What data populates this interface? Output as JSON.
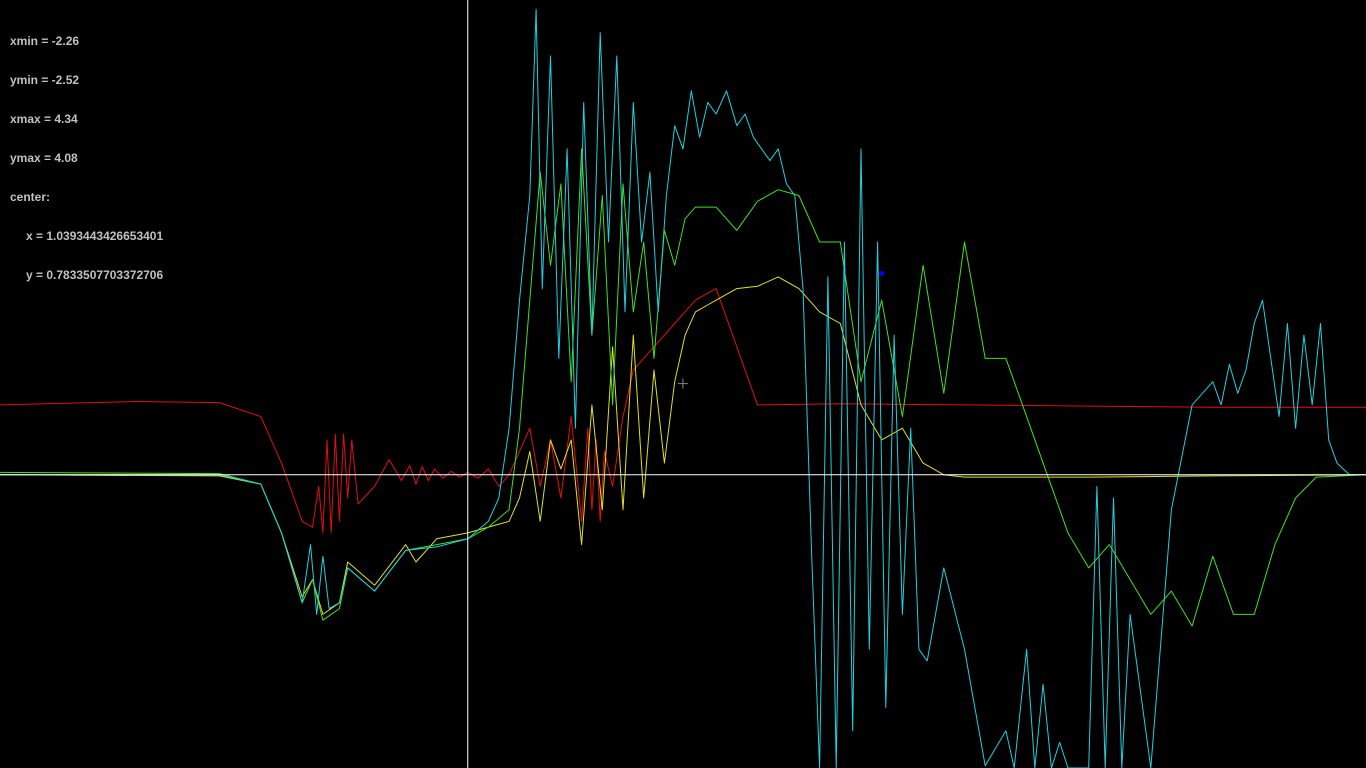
{
  "readout": {
    "xmin_line": "xmin = -2.26",
    "ymin_line": "ymin = -2.52",
    "xmax_line": "xmax = 4.34",
    "ymax_line": "ymax = 4.08",
    "center_line": "center:",
    "center_x_line": "x = 1.0393443426653401",
    "center_y_line": "y = 0.7833507703372706"
  },
  "chart_data": {
    "type": "line",
    "xlim": [
      -2.26,
      4.34
    ],
    "ylim": [
      -2.52,
      4.08
    ],
    "axes_color": "#ffffff",
    "background": "#000000",
    "center": [
      1.0393443426653401,
      0.7833507703372706
    ],
    "marker_point": {
      "x": 2.0,
      "y": 1.73,
      "color": "#0000ff"
    },
    "series": [
      {
        "color": "#e01010",
        "points": [
          [
            -2.26,
            0.6
          ],
          [
            -1.6,
            0.63
          ],
          [
            -1.2,
            0.62
          ],
          [
            -1.0,
            0.5
          ],
          [
            -0.9,
            0.1
          ],
          [
            -0.8,
            -0.4
          ],
          [
            -0.75,
            -0.45
          ],
          [
            -0.72,
            -0.1
          ],
          [
            -0.7,
            -0.5
          ],
          [
            -0.68,
            0.3
          ],
          [
            -0.66,
            -0.5
          ],
          [
            -0.64,
            0.35
          ],
          [
            -0.62,
            -0.4
          ],
          [
            -0.6,
            0.35
          ],
          [
            -0.58,
            -0.2
          ],
          [
            -0.56,
            0.3
          ],
          [
            -0.53,
            -0.25
          ],
          [
            -0.45,
            -0.1
          ],
          [
            -0.38,
            0.13
          ],
          [
            -0.32,
            -0.05
          ],
          [
            -0.28,
            0.08
          ],
          [
            -0.25,
            -0.08
          ],
          [
            -0.22,
            0.07
          ],
          [
            -0.19,
            -0.05
          ],
          [
            -0.16,
            0.05
          ],
          [
            -0.12,
            -0.03
          ],
          [
            -0.08,
            0.03
          ],
          [
            -0.04,
            -0.02
          ],
          [
            0.0,
            0.02
          ],
          [
            0.05,
            -0.03
          ],
          [
            0.1,
            0.05
          ],
          [
            0.15,
            -0.1
          ],
          [
            0.2,
            0.0
          ],
          [
            0.3,
            0.4
          ],
          [
            0.35,
            -0.1
          ],
          [
            0.4,
            0.3
          ],
          [
            0.45,
            -0.2
          ],
          [
            0.5,
            0.5
          ],
          [
            0.55,
            -0.4
          ],
          [
            0.58,
            0.4
          ],
          [
            0.6,
            -0.3
          ],
          [
            0.62,
            0.3
          ],
          [
            0.64,
            -0.4
          ],
          [
            0.66,
            0.2
          ],
          [
            0.7,
            -0.1
          ],
          [
            0.75,
            0.5
          ],
          [
            0.8,
            0.9
          ],
          [
            0.9,
            1.1
          ],
          [
            1.0,
            1.3
          ],
          [
            1.1,
            1.5
          ],
          [
            1.2,
            1.6
          ],
          [
            1.4,
            0.6
          ],
          [
            1.8,
            0.61
          ],
          [
            2.4,
            0.6
          ],
          [
            3.0,
            0.59
          ],
          [
            3.6,
            0.58
          ],
          [
            4.34,
            0.58
          ]
        ]
      },
      {
        "color": "#e0e020",
        "points": [
          [
            -2.26,
            0.0
          ],
          [
            -1.2,
            -0.01
          ],
          [
            -1.0,
            -0.08
          ],
          [
            -0.9,
            -0.5
          ],
          [
            -0.8,
            -1.05
          ],
          [
            -0.75,
            -0.9
          ],
          [
            -0.7,
            -1.2
          ],
          [
            -0.62,
            -1.1
          ],
          [
            -0.58,
            -0.75
          ],
          [
            -0.45,
            -0.95
          ],
          [
            -0.3,
            -0.6
          ],
          [
            -0.25,
            -0.75
          ],
          [
            -0.15,
            -0.55
          ],
          [
            0.0,
            -0.5
          ],
          [
            0.1,
            -0.45
          ],
          [
            0.2,
            -0.4
          ],
          [
            0.25,
            -0.2
          ],
          [
            0.3,
            0.2
          ],
          [
            0.35,
            -0.4
          ],
          [
            0.4,
            0.3
          ],
          [
            0.45,
            0.05
          ],
          [
            0.5,
            0.3
          ],
          [
            0.55,
            -0.6
          ],
          [
            0.6,
            0.6
          ],
          [
            0.65,
            -0.3
          ],
          [
            0.7,
            1.1
          ],
          [
            0.75,
            -0.3
          ],
          [
            0.8,
            1.2
          ],
          [
            0.85,
            -0.2
          ],
          [
            0.9,
            0.9
          ],
          [
            0.95,
            0.1
          ],
          [
            1.0,
            0.8
          ],
          [
            1.05,
            1.2
          ],
          [
            1.1,
            1.4
          ],
          [
            1.15,
            1.45
          ],
          [
            1.2,
            1.5
          ],
          [
            1.3,
            1.6
          ],
          [
            1.4,
            1.62
          ],
          [
            1.5,
            1.7
          ],
          [
            1.6,
            1.6
          ],
          [
            1.7,
            1.4
          ],
          [
            1.8,
            1.3
          ],
          [
            1.9,
            0.6
          ],
          [
            2.0,
            0.3
          ],
          [
            2.1,
            0.4
          ],
          [
            2.2,
            0.1
          ],
          [
            2.3,
            0.0
          ],
          [
            2.4,
            -0.02
          ],
          [
            3.0,
            -0.02
          ],
          [
            3.6,
            -0.01
          ],
          [
            4.34,
            0.0
          ]
        ]
      },
      {
        "color": "#40e020",
        "points": [
          [
            -2.26,
            0.02
          ],
          [
            -1.2,
            0.01
          ],
          [
            -1.0,
            -0.08
          ],
          [
            -0.9,
            -0.5
          ],
          [
            -0.8,
            -1.1
          ],
          [
            -0.75,
            -0.9
          ],
          [
            -0.7,
            -1.25
          ],
          [
            -0.62,
            -1.15
          ],
          [
            -0.58,
            -0.8
          ],
          [
            -0.45,
            -1.0
          ],
          [
            -0.3,
            -0.65
          ],
          [
            -0.15,
            -0.6
          ],
          [
            0.0,
            -0.55
          ],
          [
            0.1,
            -0.45
          ],
          [
            0.2,
            -0.3
          ],
          [
            0.25,
            0.4
          ],
          [
            0.3,
            1.5
          ],
          [
            0.35,
            2.6
          ],
          [
            0.4,
            1.8
          ],
          [
            0.45,
            2.5
          ],
          [
            0.5,
            0.8
          ],
          [
            0.55,
            2.8
          ],
          [
            0.6,
            1.2
          ],
          [
            0.65,
            2.4
          ],
          [
            0.7,
            0.6
          ],
          [
            0.75,
            2.5
          ],
          [
            0.8,
            1.4
          ],
          [
            0.85,
            2.0
          ],
          [
            0.9,
            1.0
          ],
          [
            0.95,
            2.1
          ],
          [
            1.0,
            1.8
          ],
          [
            1.05,
            2.2
          ],
          [
            1.1,
            2.3
          ],
          [
            1.2,
            2.3
          ],
          [
            1.3,
            2.1
          ],
          [
            1.4,
            2.35
          ],
          [
            1.5,
            2.45
          ],
          [
            1.6,
            2.4
          ],
          [
            1.7,
            2.0
          ],
          [
            1.8,
            2.0
          ],
          [
            1.9,
            0.8
          ],
          [
            2.0,
            1.5
          ],
          [
            2.1,
            0.5
          ],
          [
            2.2,
            1.8
          ],
          [
            2.3,
            0.7
          ],
          [
            2.4,
            2.0
          ],
          [
            2.5,
            1.0
          ],
          [
            2.6,
            1.0
          ],
          [
            2.7,
            0.5
          ],
          [
            2.8,
            0.0
          ],
          [
            2.9,
            -0.5
          ],
          [
            3.0,
            -0.8
          ],
          [
            3.1,
            -0.6
          ],
          [
            3.2,
            -0.9
          ],
          [
            3.3,
            -1.2
          ],
          [
            3.4,
            -1.0
          ],
          [
            3.5,
            -1.3
          ],
          [
            3.6,
            -0.7
          ],
          [
            3.7,
            -1.2
          ],
          [
            3.8,
            -1.2
          ],
          [
            3.9,
            -0.6
          ],
          [
            4.0,
            -0.2
          ],
          [
            4.1,
            -0.02
          ],
          [
            4.34,
            0.0
          ]
        ]
      },
      {
        "color": "#20d0e0",
        "points": [
          [
            -2.26,
            0.0
          ],
          [
            -1.2,
            0.0
          ],
          [
            -1.0,
            -0.08
          ],
          [
            -0.9,
            -0.5
          ],
          [
            -0.8,
            -1.1
          ],
          [
            -0.76,
            -0.6
          ],
          [
            -0.73,
            -1.2
          ],
          [
            -0.7,
            -0.7
          ],
          [
            -0.67,
            -1.15
          ],
          [
            -0.62,
            -1.1
          ],
          [
            -0.58,
            -0.8
          ],
          [
            -0.45,
            -1.0
          ],
          [
            -0.3,
            -0.65
          ],
          [
            -0.15,
            -0.62
          ],
          [
            0.0,
            -0.55
          ],
          [
            0.1,
            -0.4
          ],
          [
            0.15,
            -0.2
          ],
          [
            0.2,
            0.4
          ],
          [
            0.25,
            1.5
          ],
          [
            0.3,
            2.4
          ],
          [
            0.33,
            4.0
          ],
          [
            0.36,
            1.6
          ],
          [
            0.4,
            3.6
          ],
          [
            0.44,
            1.0
          ],
          [
            0.48,
            2.8
          ],
          [
            0.52,
            0.4
          ],
          [
            0.56,
            3.2
          ],
          [
            0.6,
            1.2
          ],
          [
            0.64,
            3.8
          ],
          [
            0.68,
            2.0
          ],
          [
            0.72,
            3.6
          ],
          [
            0.76,
            1.4
          ],
          [
            0.8,
            3.2
          ],
          [
            0.84,
            2.0
          ],
          [
            0.88,
            2.6
          ],
          [
            0.92,
            1.4
          ],
          [
            0.96,
            2.4
          ],
          [
            1.0,
            3.0
          ],
          [
            1.04,
            2.8
          ],
          [
            1.08,
            3.3
          ],
          [
            1.12,
            2.9
          ],
          [
            1.16,
            3.2
          ],
          [
            1.2,
            3.1
          ],
          [
            1.25,
            3.3
          ],
          [
            1.3,
            3.0
          ],
          [
            1.34,
            3.1
          ],
          [
            1.38,
            2.9
          ],
          [
            1.42,
            2.8
          ],
          [
            1.46,
            2.7
          ],
          [
            1.5,
            2.8
          ],
          [
            1.54,
            2.5
          ],
          [
            1.58,
            2.4
          ],
          [
            1.62,
            1.6
          ],
          [
            1.66,
            -0.6
          ],
          [
            1.7,
            -2.52
          ],
          [
            1.74,
            1.7
          ],
          [
            1.78,
            -2.52
          ],
          [
            1.82,
            2.0
          ],
          [
            1.86,
            -2.2
          ],
          [
            1.9,
            2.8
          ],
          [
            1.94,
            -1.5
          ],
          [
            1.98,
            2.0
          ],
          [
            2.02,
            -2.0
          ],
          [
            2.06,
            1.2
          ],
          [
            2.1,
            -1.2
          ],
          [
            2.14,
            0.4
          ],
          [
            2.18,
            -1.5
          ],
          [
            2.22,
            -1.6
          ],
          [
            2.3,
            -0.8
          ],
          [
            2.4,
            -1.5
          ],
          [
            2.5,
            -2.5
          ],
          [
            2.6,
            -2.2
          ],
          [
            2.64,
            -2.52
          ],
          [
            2.7,
            -1.5
          ],
          [
            2.74,
            -2.52
          ],
          [
            2.78,
            -1.8
          ],
          [
            2.82,
            -2.52
          ],
          [
            2.86,
            -2.3
          ],
          [
            2.9,
            -2.52
          ],
          [
            3.0,
            -2.52
          ],
          [
            3.04,
            -0.1
          ],
          [
            3.08,
            -2.52
          ],
          [
            3.12,
            -0.2
          ],
          [
            3.16,
            -2.52
          ],
          [
            3.2,
            -1.2
          ],
          [
            3.3,
            -2.52
          ],
          [
            3.4,
            -0.3
          ],
          [
            3.5,
            0.6
          ],
          [
            3.6,
            0.8
          ],
          [
            3.64,
            0.6
          ],
          [
            3.68,
            0.95
          ],
          [
            3.72,
            0.7
          ],
          [
            3.76,
            0.9
          ],
          [
            3.8,
            1.3
          ],
          [
            3.84,
            1.5
          ],
          [
            3.88,
            1.0
          ],
          [
            3.92,
            0.5
          ],
          [
            3.96,
            1.3
          ],
          [
            4.0,
            0.4
          ],
          [
            4.04,
            1.2
          ],
          [
            4.08,
            0.6
          ],
          [
            4.12,
            1.3
          ],
          [
            4.16,
            0.3
          ],
          [
            4.2,
            0.1
          ],
          [
            4.26,
            0.0
          ],
          [
            4.34,
            0.0
          ]
        ]
      }
    ]
  }
}
